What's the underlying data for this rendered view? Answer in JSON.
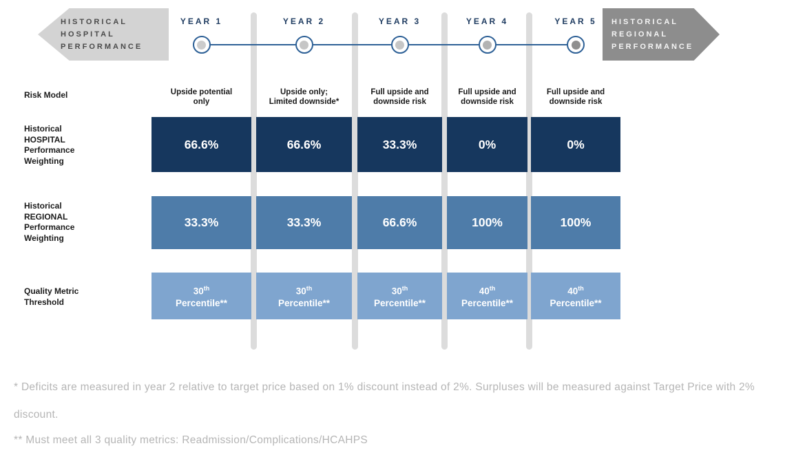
{
  "colors": {
    "navy_box": "#16375e",
    "steel_box": "#4e7ca9",
    "light_box": "#7fa5cf",
    "divider_gray": "#dcdcdc",
    "left_arrow_bg": "#d3d3d3",
    "left_arrow_text": "#4a4a4a",
    "right_arrow_bg": "#8d8d8d",
    "right_arrow_text": "#f5f5f5",
    "timeline_blue": "#2d6096",
    "year_text": "#1f3c61",
    "footnote_gray": "#b5b5b5"
  },
  "left_arrow": {
    "text": "HISTORICAL\nHOSPITAL\nPERFORMANCE"
  },
  "right_arrow": {
    "text": "HISTORICAL\nREGIONAL\nPERFORMANCE"
  },
  "timeline": {
    "years": [
      {
        "label": "YEAR 1",
        "dot_color": "#cccccc"
      },
      {
        "label": "YEAR 2",
        "dot_color": "#c6c6c6"
      },
      {
        "label": "YEAR 3",
        "dot_color": "#c6c6c6"
      },
      {
        "label": "YEAR 4",
        "dot_color": "#b3b3b3"
      },
      {
        "label": "YEAR 5",
        "dot_color": "#8f8f8f"
      }
    ]
  },
  "rows": {
    "risk_model": {
      "label": "Risk Model",
      "values": [
        "Upside potential\nonly",
        "Upside only;\nLimited downside*",
        "Full upside and\ndownside risk",
        "Full upside and\ndownside risk",
        "Full upside and\ndownside risk"
      ]
    },
    "hospital_weighting": {
      "label": "Historical\nHOSPITAL\nPerformance\nWeighting",
      "values": [
        "66.6%",
        "66.6%",
        "33.3%",
        "0%",
        "0%"
      ]
    },
    "regional_weighting": {
      "label": "Historical\nREGIONAL\nPerformance\nWeighting",
      "values": [
        "33.3%",
        "33.3%",
        "66.6%",
        "100%",
        "100%"
      ]
    },
    "quality_threshold": {
      "label": "Quality Metric\nThreshold",
      "values": [
        {
          "num": "30",
          "sup": "th",
          "text": "Percentile**"
        },
        {
          "num": "30",
          "sup": "th",
          "text": "Percentile**"
        },
        {
          "num": "30",
          "sup": "th",
          "text": "Percentile**"
        },
        {
          "num": "40",
          "sup": "th",
          "text": "Percentile**"
        },
        {
          "num": "40",
          "sup": "th",
          "text": "Percentile**"
        }
      ]
    }
  },
  "footnotes": [
    "* Deficits are measured in year 2 relative to target price based on 1% discount instead of 2%.  Surpluses will be measured against Target Price with 2% discount.",
    "** Must meet all 3 quality metrics: Readmission/Complications/HCAHPS"
  ]
}
